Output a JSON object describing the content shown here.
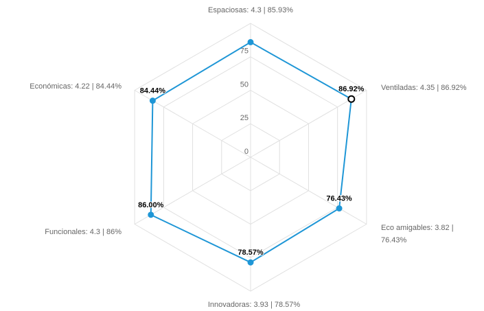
{
  "chart_data": {
    "type": "radar",
    "categories": [
      "Espaciosas: 4.3 | 85.93%",
      "Ventiladas: 4.35 | 86.92%",
      "Eco amigables: 3.82 | 76.43%",
      "Innovadoras: 3.93 | 78.57%",
      "Funcionales: 4.3 | 86%",
      "Económicas: 4.22 | 84.44%"
    ],
    "values": [
      85.93,
      86.92,
      76.43,
      78.57,
      86,
      84.44
    ],
    "value_labels": [
      null,
      "86.92%",
      "76.43%",
      "78.57%",
      "86.00%",
      "84.44%"
    ],
    "color": "#1e96d6",
    "ylim": [
      0,
      100
    ],
    "yticks": [
      0,
      25,
      50,
      75
    ],
    "grid": true
  }
}
